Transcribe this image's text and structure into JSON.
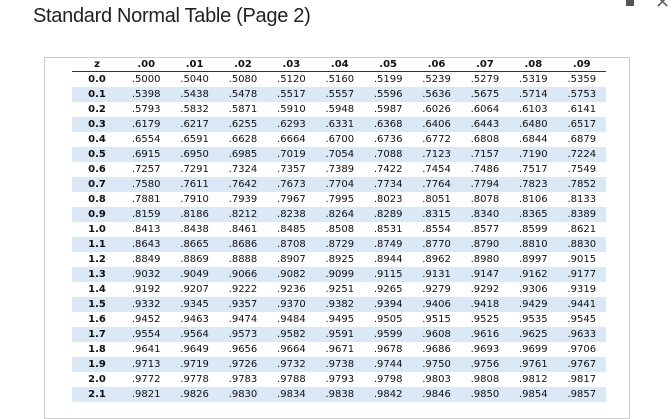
{
  "header": {
    "title": "Standard Normal Table (Page 2)"
  },
  "table": {
    "columns": [
      "z",
      ".00",
      ".01",
      ".02",
      ".03",
      ".04",
      ".05",
      ".06",
      ".07",
      ".08",
      ".09"
    ],
    "rows": [
      [
        "0.0",
        ".5000",
        ".5040",
        ".5080",
        ".5120",
        ".5160",
        ".5199",
        ".5239",
        ".5279",
        ".5319",
        ".5359"
      ],
      [
        "0.1",
        ".5398",
        ".5438",
        ".5478",
        ".5517",
        ".5557",
        ".5596",
        ".5636",
        ".5675",
        ".5714",
        ".5753"
      ],
      [
        "0.2",
        ".5793",
        ".5832",
        ".5871",
        ".5910",
        ".5948",
        ".5987",
        ".6026",
        ".6064",
        ".6103",
        ".6141"
      ],
      [
        "0.3",
        ".6179",
        ".6217",
        ".6255",
        ".6293",
        ".6331",
        ".6368",
        ".6406",
        ".6443",
        ".6480",
        ".6517"
      ],
      [
        "0.4",
        ".6554",
        ".6591",
        ".6628",
        ".6664",
        ".6700",
        ".6736",
        ".6772",
        ".6808",
        ".6844",
        ".6879"
      ],
      [
        "0.5",
        ".6915",
        ".6950",
        ".6985",
        ".7019",
        ".7054",
        ".7088",
        ".7123",
        ".7157",
        ".7190",
        ".7224"
      ],
      [
        "0.6",
        ".7257",
        ".7291",
        ".7324",
        ".7357",
        ".7389",
        ".7422",
        ".7454",
        ".7486",
        ".7517",
        ".7549"
      ],
      [
        "0.7",
        ".7580",
        ".7611",
        ".7642",
        ".7673",
        ".7704",
        ".7734",
        ".7764",
        ".7794",
        ".7823",
        ".7852"
      ],
      [
        "0.8",
        ".7881",
        ".7910",
        ".7939",
        ".7967",
        ".7995",
        ".8023",
        ".8051",
        ".8078",
        ".8106",
        ".8133"
      ],
      [
        "0.9",
        ".8159",
        ".8186",
        ".8212",
        ".8238",
        ".8264",
        ".8289",
        ".8315",
        ".8340",
        ".8365",
        ".8389"
      ],
      [
        "1.0",
        ".8413",
        ".8438",
        ".8461",
        ".8485",
        ".8508",
        ".8531",
        ".8554",
        ".8577",
        ".8599",
        ".8621"
      ],
      [
        "1.1",
        ".8643",
        ".8665",
        ".8686",
        ".8708",
        ".8729",
        ".8749",
        ".8770",
        ".8790",
        ".8810",
        ".8830"
      ],
      [
        "1.2",
        ".8849",
        ".8869",
        ".8888",
        ".8907",
        ".8925",
        ".8944",
        ".8962",
        ".8980",
        ".8997",
        ".9015"
      ],
      [
        "1.3",
        ".9032",
        ".9049",
        ".9066",
        ".9082",
        ".9099",
        ".9115",
        ".9131",
        ".9147",
        ".9162",
        ".9177"
      ],
      [
        "1.4",
        ".9192",
        ".9207",
        ".9222",
        ".9236",
        ".9251",
        ".9265",
        ".9279",
        ".9292",
        ".9306",
        ".9319"
      ],
      [
        "1.5",
        ".9332",
        ".9345",
        ".9357",
        ".9370",
        ".9382",
        ".9394",
        ".9406",
        ".9418",
        ".9429",
        ".9441"
      ],
      [
        "1.6",
        ".9452",
        ".9463",
        ".9474",
        ".9484",
        ".9495",
        ".9505",
        ".9515",
        ".9525",
        ".9535",
        ".9545"
      ],
      [
        "1.7",
        ".9554",
        ".9564",
        ".9573",
        ".9582",
        ".9591",
        ".9599",
        ".9608",
        ".9616",
        ".9625",
        ".9633"
      ],
      [
        "1.8",
        ".9641",
        ".9649",
        ".9656",
        ".9664",
        ".9671",
        ".9678",
        ".9686",
        ".9693",
        ".9699",
        ".9706"
      ],
      [
        "1.9",
        ".9713",
        ".9719",
        ".9726",
        ".9732",
        ".9738",
        ".9744",
        ".9750",
        ".9756",
        ".9761",
        ".9767"
      ],
      [
        "2.0",
        ".9772",
        ".9778",
        ".9783",
        ".9788",
        ".9793",
        ".9798",
        ".9803",
        ".9808",
        ".9812",
        ".9817"
      ],
      [
        "2.1",
        ".9821",
        ".9826",
        ".9830",
        ".9834",
        ".9838",
        ".9842",
        ".9846",
        ".9850",
        ".9854",
        ".9857"
      ]
    ]
  }
}
